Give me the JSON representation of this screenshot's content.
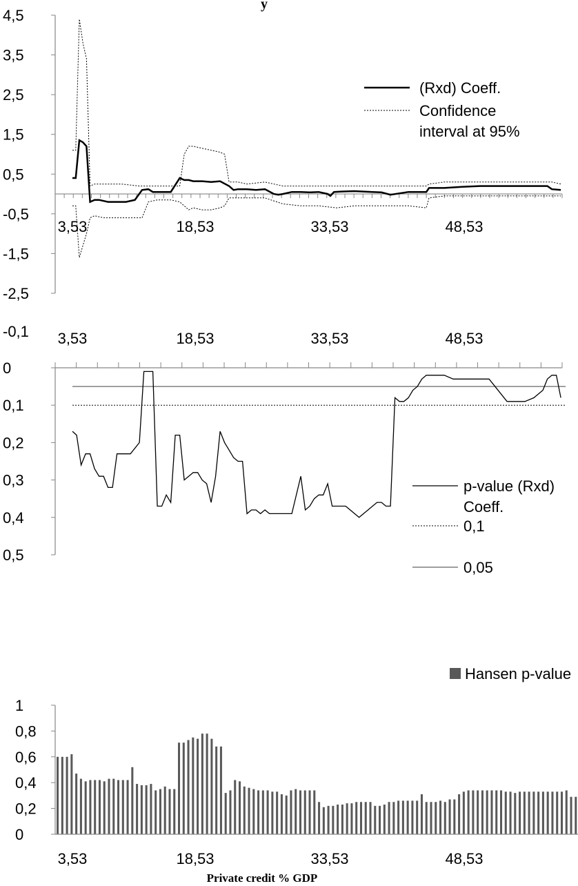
{
  "chart_data": [
    {
      "type": "line",
      "title": "",
      "top_fragment": "y",
      "xlabel": "",
      "ylabel": "",
      "ylim": [
        -2.5,
        4.5
      ],
      "yticks": [
        "4,5",
        "3,5",
        "2,5",
        "1,5",
        "0,5",
        "-0,5",
        "-1,5",
        "-2,5"
      ],
      "xtick_labels": [
        "3,53",
        "18,53",
        "33,53",
        "48,53"
      ],
      "xlim": [
        3.53,
        58.53
      ],
      "legend": [
        {
          "name": "(Rxd) Coeff.",
          "style": "solid-thick"
        },
        {
          "name": "Confidence interval at 95%",
          "style": "dotted"
        }
      ],
      "series": [
        {
          "name": "(Rxd) Coeff.",
          "x": [
            3.53,
            3.9,
            4.3,
            4.7,
            5.1,
            5.5,
            6.0,
            6.5,
            7.5,
            8.5,
            9.5,
            10.5,
            11.3,
            12.0,
            12.5,
            13.5,
            14.5,
            15.5,
            16.0,
            16.5,
            17.0,
            18.0,
            19.0,
            20.0,
            21.0,
            21.5,
            22.0,
            23.0,
            24.0,
            25.0,
            26.0,
            26.5,
            27.0,
            28.0,
            29.0,
            30.0,
            31.0,
            32.0,
            32.3,
            32.7,
            33.5,
            35.0,
            37.0,
            38.0,
            39.0,
            41.0,
            43.0,
            43.3,
            45.0,
            47.0,
            49.0,
            51.0,
            53.0,
            55.0,
            56.5,
            57.0,
            58.0
          ],
          "y": [
            0.4,
            0.4,
            1.35,
            1.3,
            1.2,
            -0.2,
            -0.15,
            -0.15,
            -0.2,
            -0.2,
            -0.2,
            -0.15,
            0.1,
            0.12,
            0.05,
            0.05,
            0.05,
            0.4,
            0.35,
            0.35,
            0.32,
            0.32,
            0.3,
            0.32,
            0.2,
            0.1,
            0.12,
            0.12,
            0.1,
            0.12,
            0.0,
            -0.02,
            0.0,
            0.05,
            0.05,
            0.04,
            0.05,
            0.0,
            -0.05,
            0.05,
            0.06,
            0.07,
            0.05,
            0.04,
            -0.02,
            0.05,
            0.05,
            0.15,
            0.15,
            0.18,
            0.2,
            0.2,
            0.2,
            0.2,
            0.2,
            0.12,
            0.1
          ]
        },
        {
          "name": "Confidence interval at 95% (upper)",
          "x": [
            3.53,
            3.9,
            4.3,
            4.7,
            5.1,
            5.5,
            6.0,
            7.0,
            9.0,
            11.0,
            11.3,
            12.0,
            13.0,
            14.5,
            15.5,
            16.0,
            16.5,
            17.0,
            18.0,
            19.0,
            20.0,
            20.5,
            21.0,
            22.0,
            23.0,
            25.0,
            27.0,
            29.0,
            31.0,
            33.0,
            35.0,
            37.0,
            39.0,
            41.0,
            43.0,
            43.3,
            45.0,
            48.0,
            51.0,
            54.0,
            57.0,
            58.0
          ],
          "y": [
            1.1,
            1.1,
            4.4,
            3.8,
            3.4,
            0.2,
            0.25,
            0.25,
            0.25,
            0.2,
            0.2,
            0.2,
            0.2,
            0.2,
            0.2,
            1.0,
            1.2,
            1.2,
            1.15,
            1.1,
            1.05,
            1.0,
            0.3,
            0.3,
            0.25,
            0.3,
            0.2,
            0.2,
            0.2,
            0.2,
            0.2,
            0.2,
            0.2,
            0.2,
            0.2,
            0.25,
            0.3,
            0.3,
            0.3,
            0.3,
            0.3,
            0.25
          ]
        },
        {
          "name": "Confidence interval at 95% (lower)",
          "x": [
            3.53,
            3.9,
            4.3,
            4.7,
            5.1,
            5.5,
            6.0,
            7.0,
            9.0,
            11.0,
            11.3,
            12.0,
            13.0,
            14.5,
            15.5,
            16.0,
            16.5,
            17.0,
            18.0,
            19.0,
            20.0,
            20.5,
            21.0,
            22.0,
            23.0,
            25.0,
            27.0,
            29.0,
            31.0,
            33.0,
            35.0,
            37.0,
            39.0,
            41.0,
            43.0,
            43.3,
            45.0,
            48.0,
            51.0,
            54.0,
            57.0,
            58.0
          ],
          "y": [
            -0.3,
            -0.3,
            -1.6,
            -1.3,
            -1.0,
            -0.6,
            -0.55,
            -0.6,
            -0.6,
            -0.6,
            -0.6,
            -0.2,
            -0.15,
            -0.15,
            -0.2,
            -0.3,
            -0.4,
            -0.35,
            -0.4,
            -0.4,
            -0.35,
            -0.3,
            -0.1,
            -0.1,
            -0.1,
            -0.1,
            -0.25,
            -0.3,
            -0.3,
            -0.35,
            -0.3,
            -0.3,
            -0.3,
            -0.3,
            -0.35,
            -0.1,
            -0.05,
            -0.05,
            -0.05,
            -0.05,
            -0.05,
            -0.05
          ]
        }
      ]
    },
    {
      "type": "line",
      "title": "",
      "xlabel": "",
      "ylabel": "",
      "ylim": [
        -0.1,
        0.5
      ],
      "y_inverted": true,
      "yticks": [
        "-0,1",
        "0",
        "0,1",
        "0,2",
        "0,3",
        "0,4",
        "0,5"
      ],
      "xtick_labels": [
        "3,53",
        "18,53",
        "33,53",
        "48,53"
      ],
      "xlim": [
        3.53,
        58.53
      ],
      "legend": [
        {
          "name": "p-value (Rxd) Coeff.",
          "style": "solid"
        },
        {
          "name": "0,1",
          "style": "dotted"
        },
        {
          "name": "0,05",
          "style": "solid-gray"
        }
      ],
      "series": [
        {
          "name": "p-value (Rxd) Coeff.",
          "x": [
            3.53,
            4.0,
            4.5,
            5.0,
            5.5,
            6.0,
            6.5,
            7.0,
            7.5,
            8.0,
            8.5,
            9.0,
            9.5,
            10.0,
            11.0,
            11.5,
            12.0,
            12.5,
            13.0,
            13.5,
            14.0,
            14.5,
            15.0,
            15.5,
            16.0,
            16.5,
            17.0,
            17.5,
            18.0,
            18.5,
            19.0,
            19.5,
            20.0,
            20.5,
            21.0,
            21.5,
            22.0,
            22.5,
            23.0,
            23.5,
            24.0,
            24.5,
            25.0,
            25.5,
            26.0,
            27.0,
            28.0,
            29.0,
            29.5,
            30.0,
            30.5,
            31.0,
            31.5,
            32.0,
            32.5,
            33.0,
            34.0,
            35.0,
            35.5,
            36.0,
            36.5,
            37.0,
            37.5,
            38.0,
            38.5,
            39.0,
            39.5,
            40.0,
            40.5,
            41.0,
            41.5,
            42.0,
            42.5,
            43.0,
            43.5,
            44.0,
            44.5,
            45.0,
            46.0,
            47.0,
            48.0,
            50.0,
            52.0,
            54.0,
            55.0,
            56.0,
            56.5,
            57.0,
            57.5,
            58.0
          ],
          "y": [
            0.17,
            0.18,
            0.26,
            0.23,
            0.23,
            0.27,
            0.29,
            0.29,
            0.32,
            0.32,
            0.23,
            0.23,
            0.23,
            0.23,
            0.2,
            0.01,
            0.01,
            0.01,
            0.37,
            0.37,
            0.34,
            0.36,
            0.18,
            0.18,
            0.3,
            0.29,
            0.28,
            0.28,
            0.3,
            0.31,
            0.36,
            0.29,
            0.17,
            0.2,
            0.22,
            0.24,
            0.25,
            0.25,
            0.39,
            0.38,
            0.38,
            0.39,
            0.38,
            0.39,
            0.39,
            0.39,
            0.39,
            0.29,
            0.38,
            0.37,
            0.35,
            0.34,
            0.34,
            0.31,
            0.37,
            0.37,
            0.37,
            0.39,
            0.4,
            0.39,
            0.38,
            0.37,
            0.36,
            0.36,
            0.37,
            0.37,
            0.08,
            0.09,
            0.09,
            0.08,
            0.06,
            0.05,
            0.03,
            0.02,
            0.02,
            0.02,
            0.02,
            0.02,
            0.03,
            0.03,
            0.03,
            0.03,
            0.09,
            0.09,
            0.08,
            0.06,
            0.03,
            0.02,
            0.02,
            0.08
          ]
        },
        {
          "name": "0,1",
          "x": [
            3.53,
            58.53
          ],
          "y": [
            0.1,
            0.1
          ]
        },
        {
          "name": "0,05",
          "x": [
            3.53,
            58.53
          ],
          "y": [
            0.05,
            0.05
          ]
        }
      ]
    },
    {
      "type": "bar",
      "title": "",
      "xlabel": "Private credit % GDP",
      "ylabel": "",
      "ylim": [
        0,
        1
      ],
      "yticks": [
        "1",
        "0,8",
        "0,6",
        "0,4",
        "0,2",
        "0"
      ],
      "xtick_labels": [
        "3,53",
        "18,53",
        "33,53",
        "48,53"
      ],
      "xlim": [
        3.53,
        58.53
      ],
      "legend": [
        {
          "name": "Hansen p-value",
          "color": "#595959"
        }
      ],
      "series": [
        {
          "name": "Hansen p-value",
          "values": [
            0.6,
            0.6,
            0.6,
            0.62,
            0.47,
            0.43,
            0.41,
            0.42,
            0.42,
            0.42,
            0.41,
            0.43,
            0.43,
            0.42,
            0.42,
            0.42,
            0.52,
            0.39,
            0.38,
            0.38,
            0.39,
            0.34,
            0.35,
            0.37,
            0.35,
            0.35,
            0.71,
            0.71,
            0.73,
            0.75,
            0.74,
            0.78,
            0.78,
            0.74,
            0.68,
            0.68,
            0.32,
            0.34,
            0.42,
            0.41,
            0.37,
            0.36,
            0.35,
            0.34,
            0.34,
            0.34,
            0.33,
            0.33,
            0.31,
            0.3,
            0.34,
            0.35,
            0.34,
            0.34,
            0.34,
            0.34,
            0.25,
            0.21,
            0.22,
            0.22,
            0.23,
            0.23,
            0.24,
            0.24,
            0.25,
            0.25,
            0.25,
            0.25,
            0.22,
            0.22,
            0.23,
            0.25,
            0.25,
            0.26,
            0.26,
            0.26,
            0.26,
            0.26,
            0.31,
            0.25,
            0.25,
            0.25,
            0.26,
            0.25,
            0.27,
            0.27,
            0.31,
            0.33,
            0.34,
            0.34,
            0.34,
            0.34,
            0.34,
            0.34,
            0.34,
            0.34,
            0.33,
            0.33,
            0.32,
            0.33,
            0.33,
            0.33,
            0.33,
            0.33,
            0.33,
            0.33,
            0.33,
            0.33,
            0.33,
            0.34,
            0.29,
            0.29
          ]
        }
      ]
    }
  ]
}
